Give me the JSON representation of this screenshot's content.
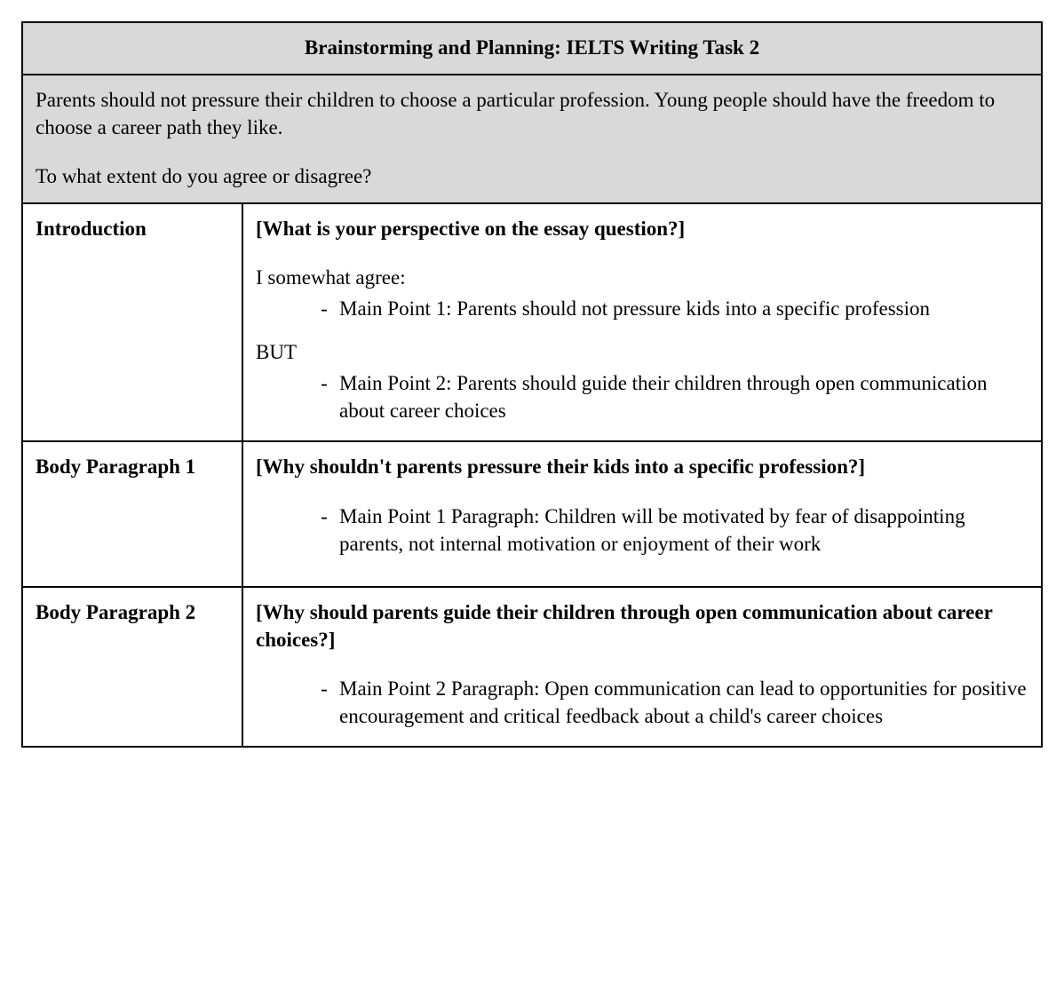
{
  "header": {
    "title": "Brainstorming and Planning:  IELTS Writing Task 2"
  },
  "prompt": {
    "paragraph1": "Parents should not pressure their children to choose a particular profession. Young people should have the freedom to choose a career path they like.",
    "paragraph2": "To what extent do you agree or disagree?"
  },
  "sections": {
    "introduction": {
      "label": "Introduction",
      "question": "[What is your perspective on the essay question?]",
      "stance": "I somewhat agree:",
      "point1": "Main Point 1: Parents should not pressure kids into a specific profession",
      "connector": "BUT",
      "point2": "Main Point 2: Parents should guide their children through open communication about career choices"
    },
    "body1": {
      "label": "Body Paragraph 1",
      "question": "[Why shouldn't parents pressure their kids into a specific profession?]",
      "point": "Main Point 1 Paragraph: Children will be motivated by fear of disappointing parents, not internal motivation or enjoyment of their work"
    },
    "body2": {
      "label": "Body Paragraph 2",
      "question": "[Why should parents guide their children through open communication about career choices?]",
      "point": "Main Point 2 Paragraph: Open communication can lead to opportunities for positive encouragement and critical feedback about a child's career choices"
    }
  },
  "bullet_glyph": "-"
}
